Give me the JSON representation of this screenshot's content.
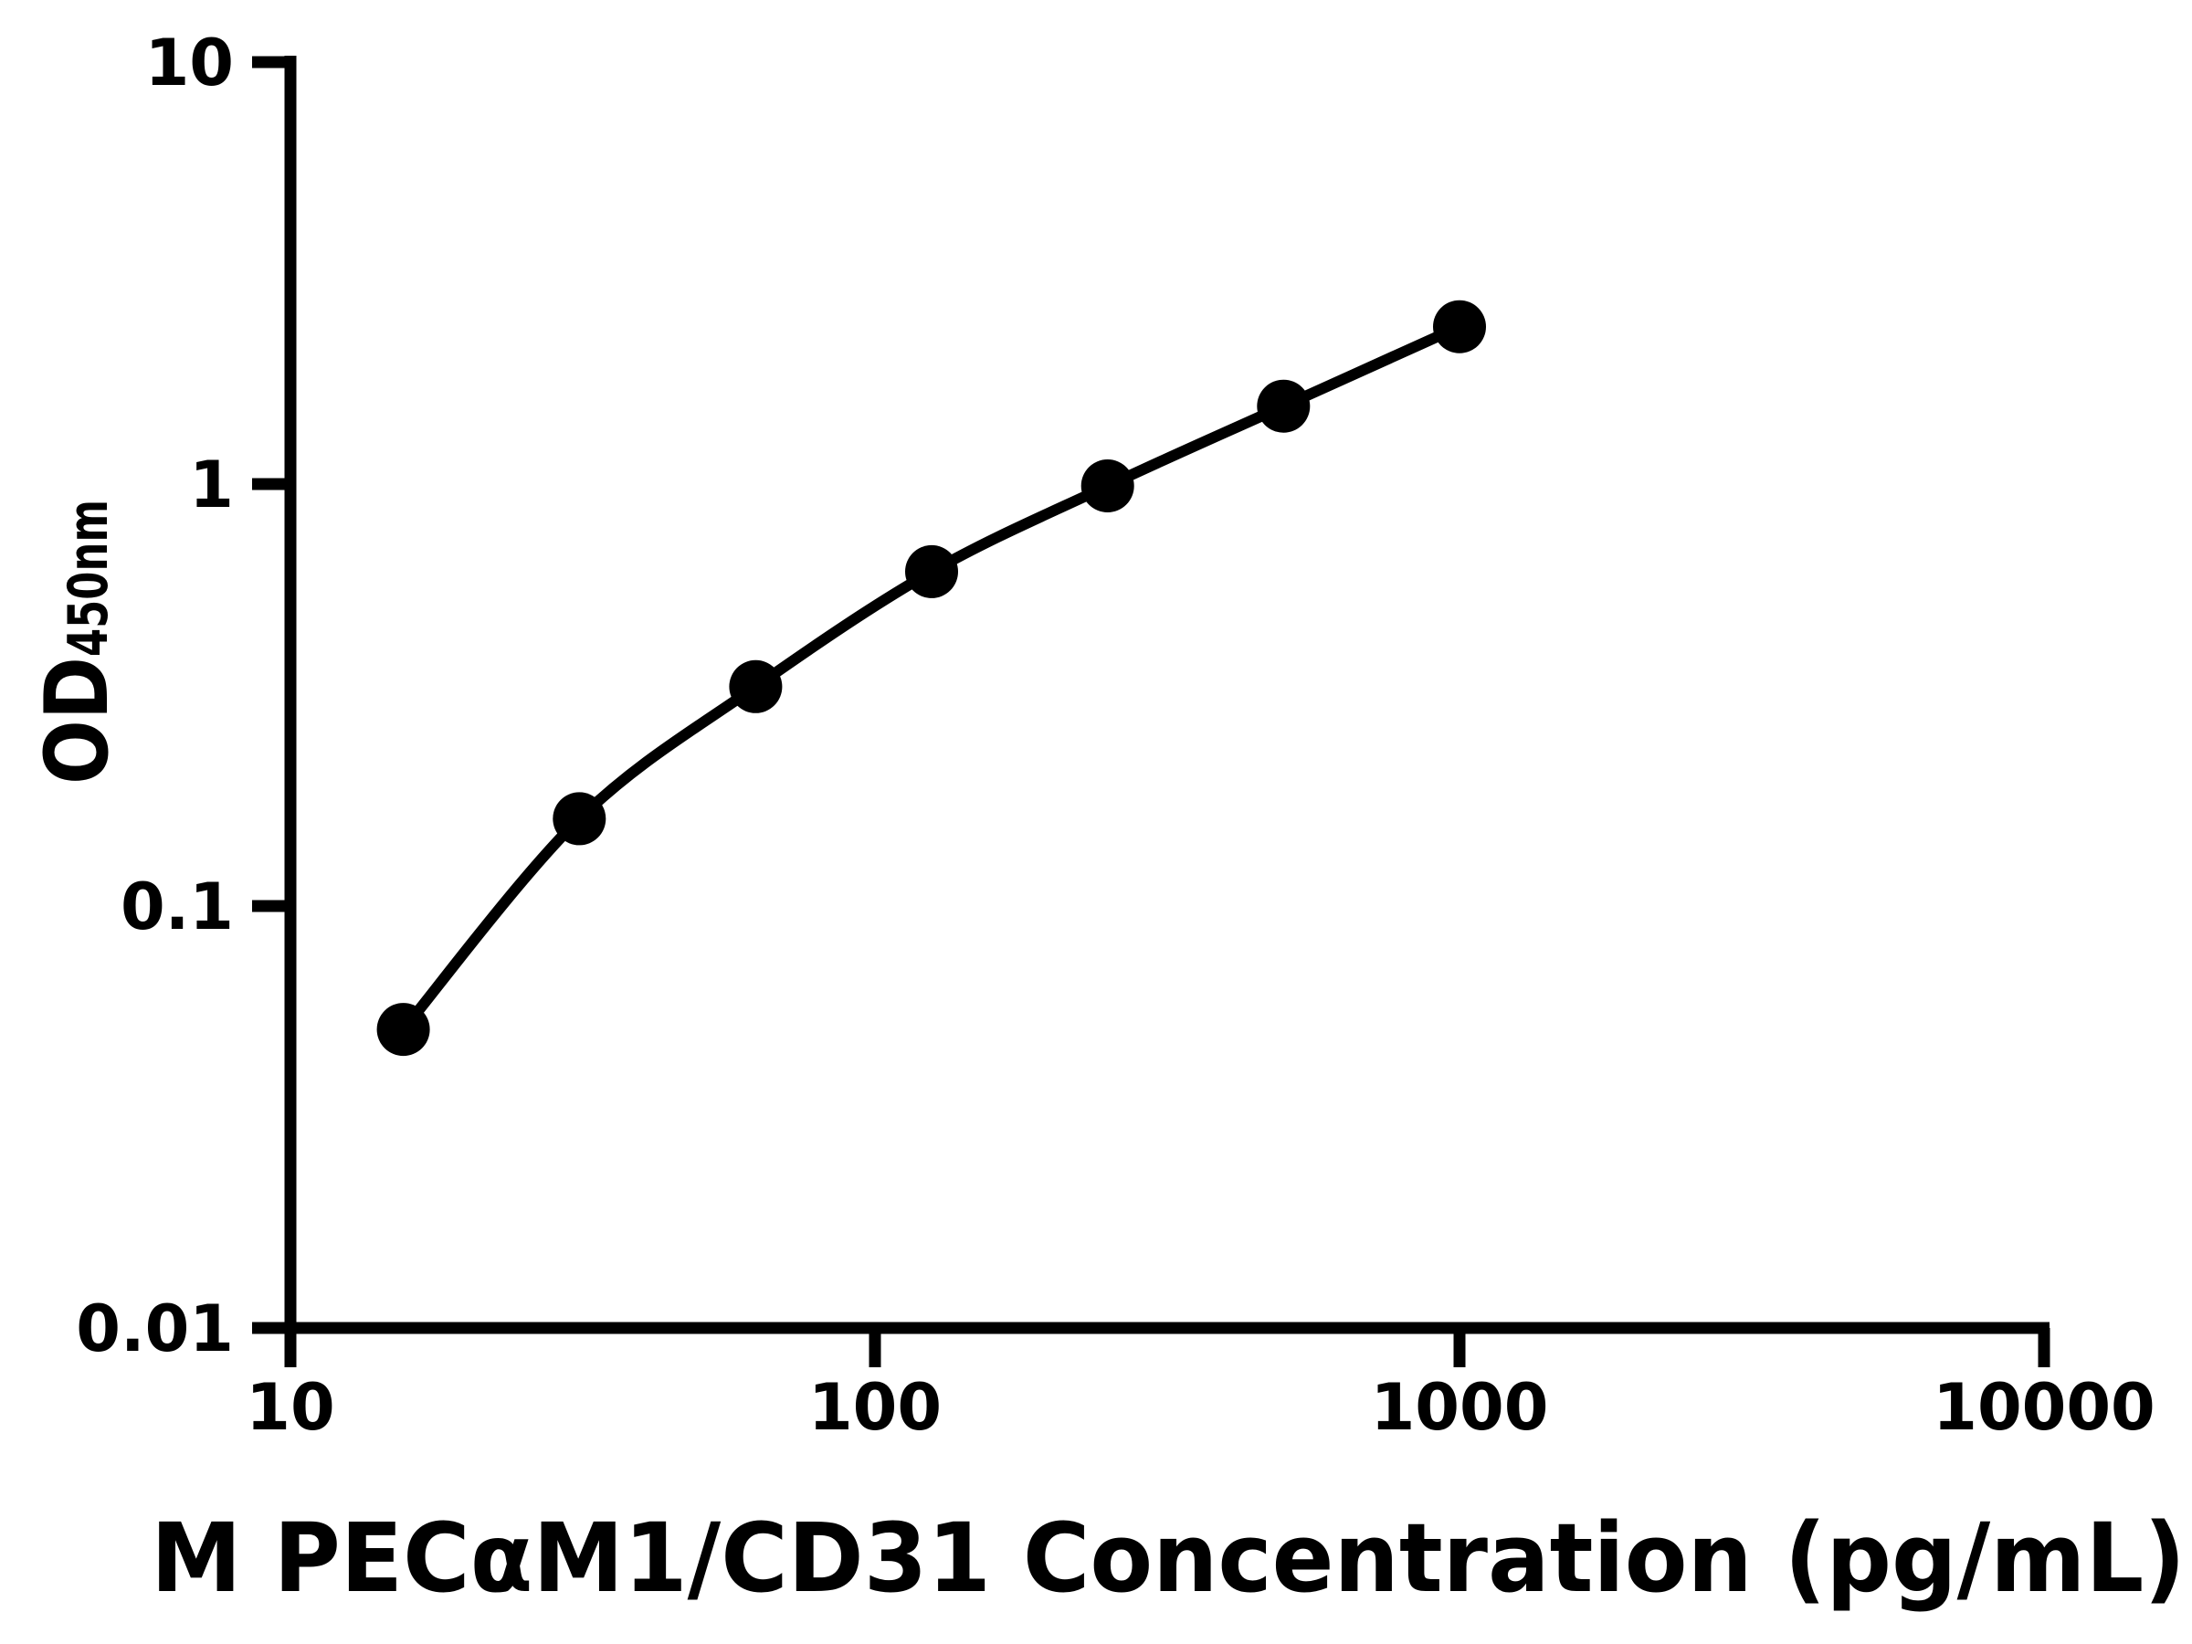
{
  "chart_data": {
    "type": "scatter",
    "title": "",
    "xlabel": "M PECαM1/CD31 Concentration (pg/mL)",
    "ylabel": {
      "main": "OD",
      "sub": "450nm"
    },
    "x_scale": "log",
    "y_scale": "log",
    "xlim": [
      10,
      10000
    ],
    "ylim": [
      0.01,
      10
    ],
    "x_ticks": [
      {
        "value": 10,
        "label": "10"
      },
      {
        "value": 100,
        "label": "100"
      },
      {
        "value": 1000,
        "label": "1000"
      },
      {
        "value": 10000,
        "label": "10000"
      }
    ],
    "y_ticks": [
      {
        "value": 10,
        "label": "10"
      },
      {
        "value": 1,
        "label": "1"
      },
      {
        "value": 0.1,
        "label": "0.1"
      },
      {
        "value": 0.01,
        "label": "0.01"
      }
    ],
    "grid": false,
    "legend": false,
    "series": [
      {
        "name": "standard-curve",
        "marker": "filled-circle",
        "line": "smooth",
        "color": "#000000",
        "x": [
          15.6,
          31.2,
          62.5,
          125,
          250,
          500,
          1000
        ],
        "y": [
          0.051,
          0.161,
          0.331,
          0.62,
          0.99,
          1.53,
          2.36
        ]
      }
    ],
    "colors": {
      "foreground": "#000000",
      "background": "#ffffff"
    }
  }
}
